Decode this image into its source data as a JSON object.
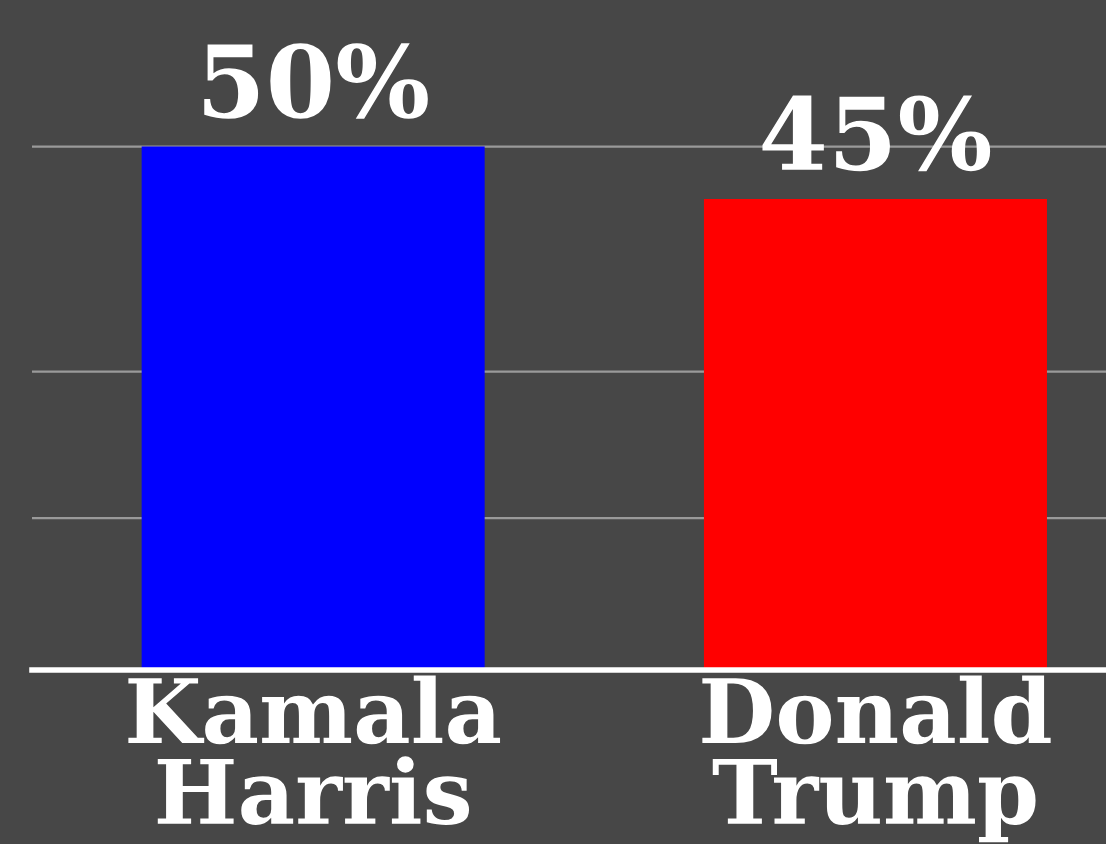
{
  "chart_data": {
    "type": "bar",
    "categories": [
      "Kamala Harris",
      "Donald Trump"
    ],
    "values": [
      50,
      45
    ],
    "colors": [
      "#0000ff",
      "#ff0000"
    ],
    "value_labels": [
      "50%",
      "45%"
    ],
    "ylim": [
      0,
      64
    ],
    "yticks": [
      {
        "value": 14.5,
        "label": null
      },
      {
        "value": 28.5,
        "label": null
      },
      {
        "value": 50,
        "label": null
      }
    ],
    "grid": "y",
    "tick_labels": "x",
    "legend": false
  }
}
